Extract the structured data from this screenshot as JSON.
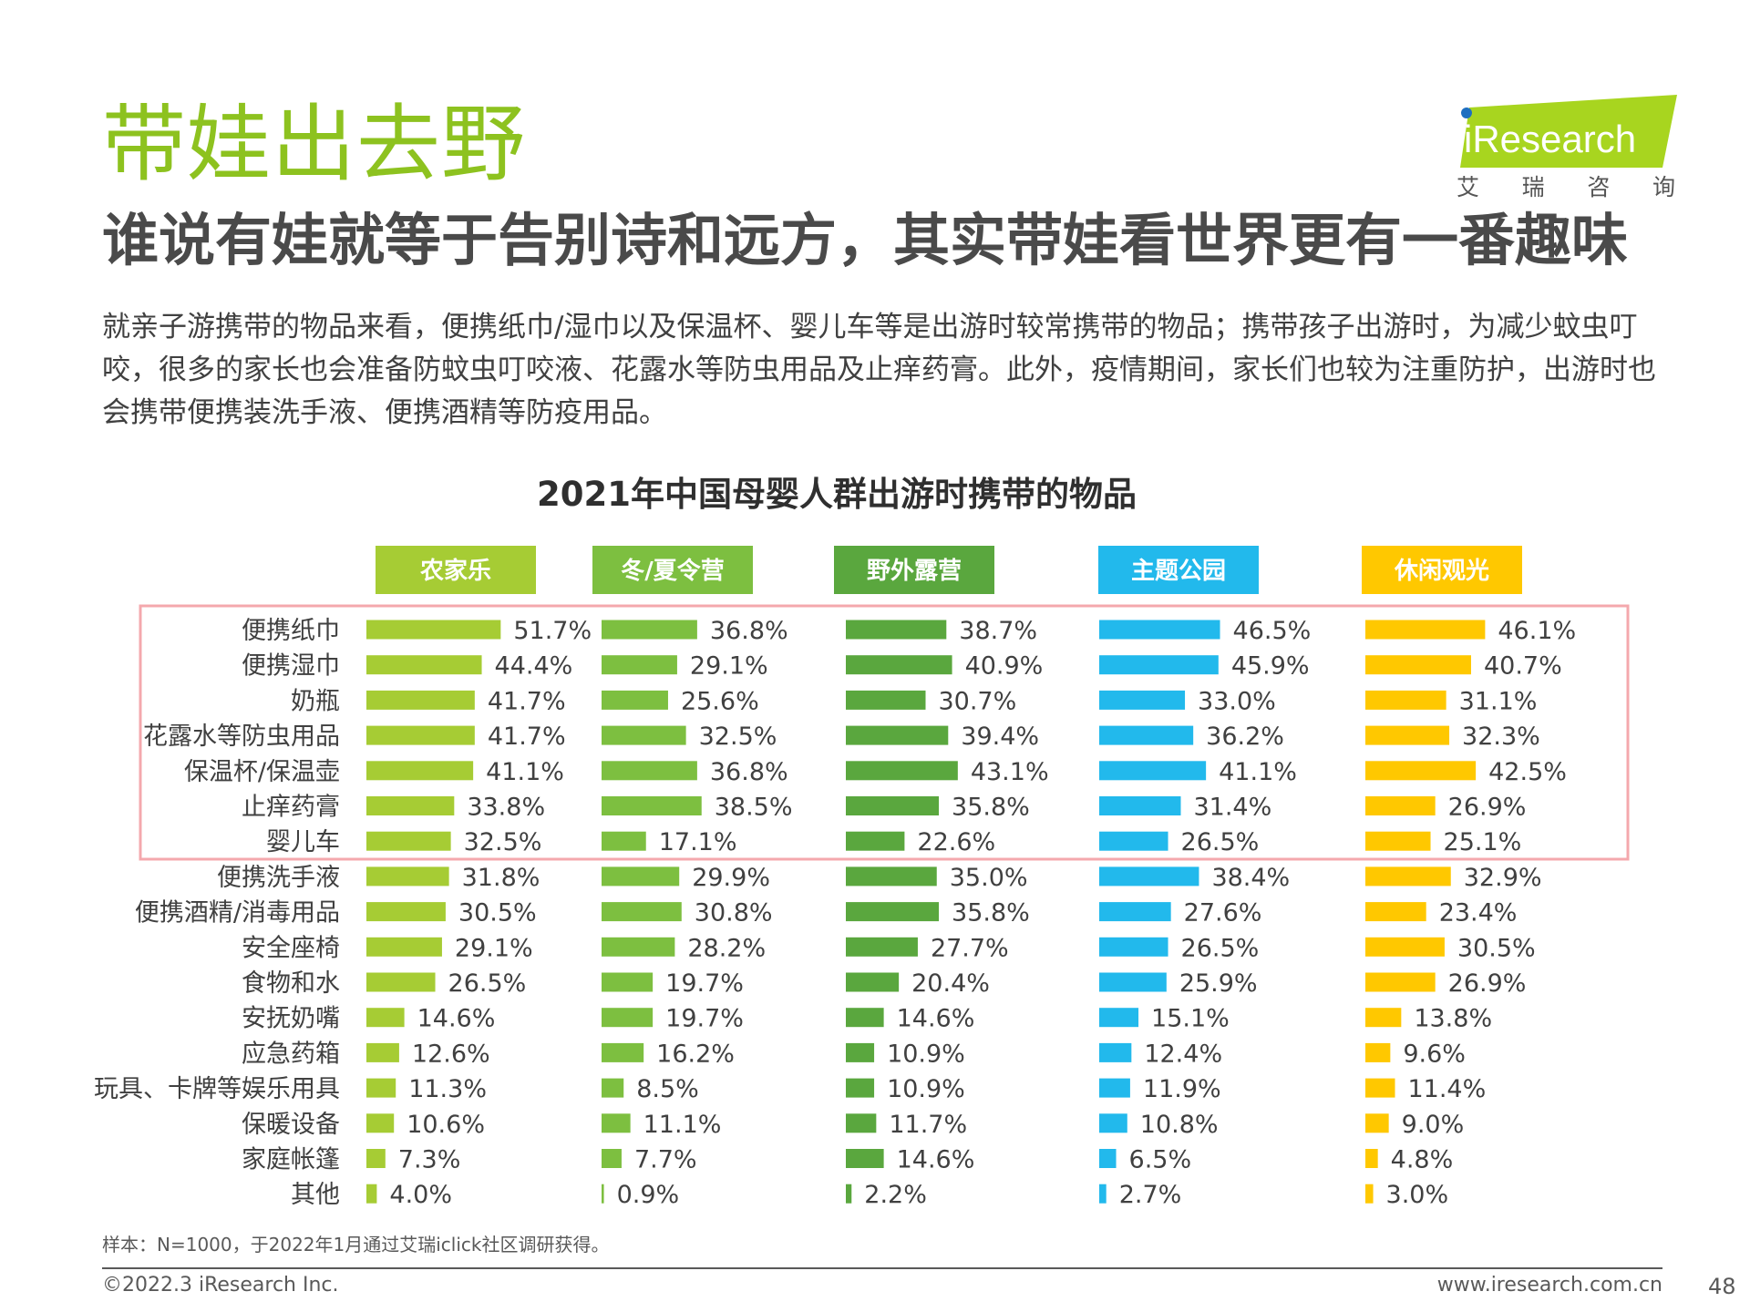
{
  "header": {
    "title": "带娃出去野",
    "subtitle": "谁说有娃就等于告别诗和远方，其实带娃看世界更有一番趣味",
    "intro": "就亲子游携带的物品来看，便携纸巾/湿巾以及保温杯、婴儿车等是出游时较常携带的物品；携带孩子出游时，为减少蚊虫叮咬，很多的家长也会准备防蚊虫叮咬液、花露水等防虫用品及止痒药膏。此外，疫情期间，家长们也较为注重防护，出游时也会携带便携装洗手液、便携酒精等防疫用品。"
  },
  "logo": {
    "word": "iResearch",
    "chars": [
      "艾",
      "瑞",
      "咨",
      "询"
    ]
  },
  "colors": {
    "title_green": "#8dc21f",
    "highlight_box": "#f4a8ad"
  },
  "chart_data": {
    "type": "bar",
    "orientation": "horizontal",
    "title": "2021年中国母婴人群出游时携带的物品",
    "unit": "%",
    "categories": [
      "便携纸巾",
      "便携湿巾",
      "奶瓶",
      "花露水等防虫用品",
      "保温杯/保温壶",
      "止痒药膏",
      "婴儿车",
      "便携洗手液",
      "便携酒精/消毒用品",
      "安全座椅",
      "食物和水",
      "安抚奶嘴",
      "应急药箱",
      "玩具、卡牌等娱乐用具",
      "保暖设备",
      "家庭帐篷",
      "其他"
    ],
    "series": [
      {
        "name": "农家乐",
        "color": "#a6cc34",
        "values": [
          51.7,
          44.4,
          41.7,
          41.7,
          41.1,
          33.8,
          32.5,
          31.8,
          30.5,
          29.1,
          26.5,
          14.6,
          12.6,
          11.3,
          10.6,
          7.3,
          4.0
        ]
      },
      {
        "name": "冬/夏令营",
        "color": "#7dbf40",
        "values": [
          36.8,
          29.1,
          25.6,
          32.5,
          36.8,
          38.5,
          17.1,
          29.9,
          30.8,
          28.2,
          19.7,
          19.7,
          16.2,
          8.5,
          11.1,
          7.7,
          0.9
        ]
      },
      {
        "name": "野外露营",
        "color": "#5aa73e",
        "values": [
          38.7,
          40.9,
          30.7,
          39.4,
          43.1,
          35.8,
          22.6,
          35.0,
          35.8,
          27.7,
          20.4,
          14.6,
          10.9,
          10.9,
          11.7,
          14.6,
          2.2
        ]
      },
      {
        "name": "主题公园",
        "color": "#22b9ec",
        "values": [
          46.5,
          45.9,
          33.0,
          36.2,
          41.1,
          31.4,
          26.5,
          38.4,
          27.6,
          26.5,
          25.9,
          15.1,
          12.4,
          11.9,
          10.8,
          6.5,
          2.7
        ]
      },
      {
        "name": "休闲观光",
        "color": "#ffc800",
        "values": [
          46.1,
          40.7,
          31.1,
          32.3,
          42.5,
          26.9,
          25.1,
          32.9,
          23.4,
          30.5,
          26.9,
          13.8,
          9.6,
          11.4,
          9.0,
          4.8,
          3.0
        ]
      }
    ],
    "highlight": {
      "from": "便携纸巾",
      "to": "婴儿车"
    }
  },
  "footer": {
    "note": "样本：N=1000，于2022年1月通过艾瑞iclick社区调研获得。",
    "copyright": "©2022.3 iResearch Inc.",
    "website": "www.iresearch.com.cn",
    "page": "48"
  }
}
